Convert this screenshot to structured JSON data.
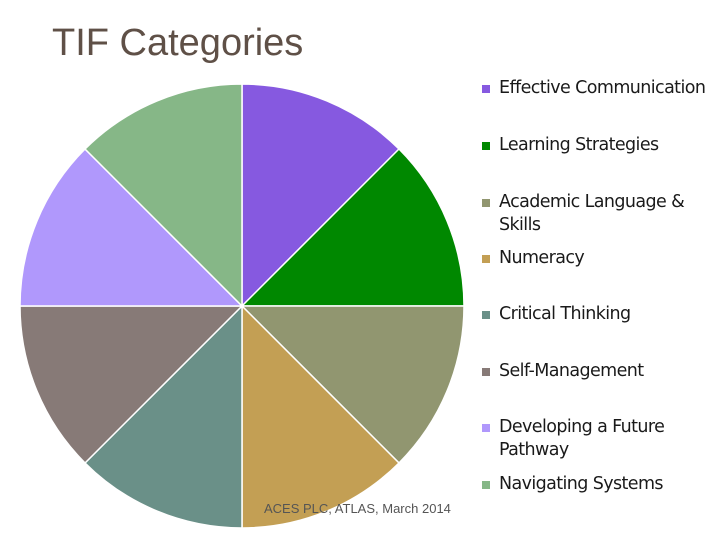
{
  "slide": {
    "title": "TIF Categories",
    "footer": "ACES PLC, ATLAS, March 2014"
  },
  "chart_data": {
    "type": "pie",
    "title": "",
    "categories": [
      "Effective Communication",
      "Learning Strategies",
      "Academic Language & Skills",
      "Numeracy",
      "Critical Thinking",
      "Self-Management",
      "Developing a Future Pathway",
      "Navigating Systems"
    ],
    "values": [
      1,
      1,
      1,
      1,
      1,
      1,
      1,
      1
    ],
    "colors": [
      "#8659e0",
      "#008800",
      "#919670",
      "#c39f54",
      "#6a9088",
      "#877a77",
      "#b098fc",
      "#86b787"
    ],
    "legend": "right"
  }
}
